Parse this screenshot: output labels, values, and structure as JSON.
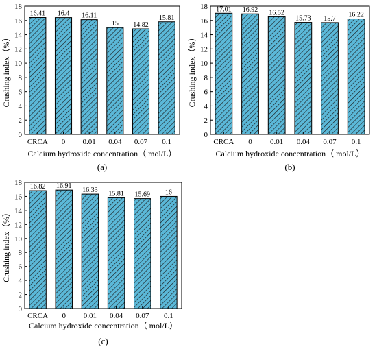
{
  "chart_data": [
    {
      "type": "bar",
      "panel_label": "(a)",
      "categories": [
        "CRCA",
        "0",
        "0.01",
        "0.04",
        "0.07",
        "0.1"
      ],
      "values": [
        16.41,
        16.4,
        16.11,
        15,
        14.82,
        15.81
      ],
      "value_labels": [
        "16.41",
        "16.4",
        "16.11",
        "15",
        "14.82",
        "15.81"
      ],
      "xlabel": "Calcium hydroxide concentration（ mol/L）",
      "ylabel": "Crushing index（%）",
      "ylim": [
        0,
        18
      ],
      "yticks": [
        "0",
        "2",
        "4",
        "6",
        "8",
        "10",
        "12",
        "14",
        "16",
        "18"
      ],
      "bar_color": "#5bb8d8",
      "hatch": "diagonal",
      "grid": false,
      "legend": "none"
    },
    {
      "type": "bar",
      "panel_label": "(b)",
      "categories": [
        "CRCA",
        "0",
        "0.01",
        "0.04",
        "0.07",
        "0.1"
      ],
      "values": [
        17.01,
        16.92,
        16.52,
        15.73,
        15.7,
        16.22
      ],
      "value_labels": [
        "17.01",
        "16.92",
        "16.52",
        "15.73",
        "15.7",
        "16.22"
      ],
      "xlabel": "Calcium hydroxide concentration（ mol/L）",
      "ylabel": "Crushing index（%）",
      "ylim": [
        0,
        18
      ],
      "yticks": [
        "0",
        "2",
        "4",
        "6",
        "8",
        "10",
        "12",
        "14",
        "16",
        "18"
      ],
      "bar_color": "#5bb8d8",
      "hatch": "diagonal",
      "grid": false,
      "legend": "none"
    },
    {
      "type": "bar",
      "panel_label": "(c)",
      "categories": [
        "CRCA",
        "0",
        "0.01",
        "0.04",
        "0.07",
        "0.1"
      ],
      "values": [
        16.82,
        16.91,
        16.33,
        15.81,
        15.69,
        16
      ],
      "value_labels": [
        "16.82",
        "16.91",
        "16.33",
        "15.81",
        "15.69",
        "16"
      ],
      "xlabel": "Calcium hydroxide concentration（ mol/L）",
      "ylabel": "Crushing index（%）",
      "ylim": [
        0,
        18
      ],
      "yticks": [
        "0",
        "2",
        "4",
        "6",
        "8",
        "10",
        "12",
        "14",
        "16",
        "18"
      ],
      "bar_color": "#5bb8d8",
      "hatch": "diagonal",
      "grid": false,
      "legend": "none"
    }
  ]
}
